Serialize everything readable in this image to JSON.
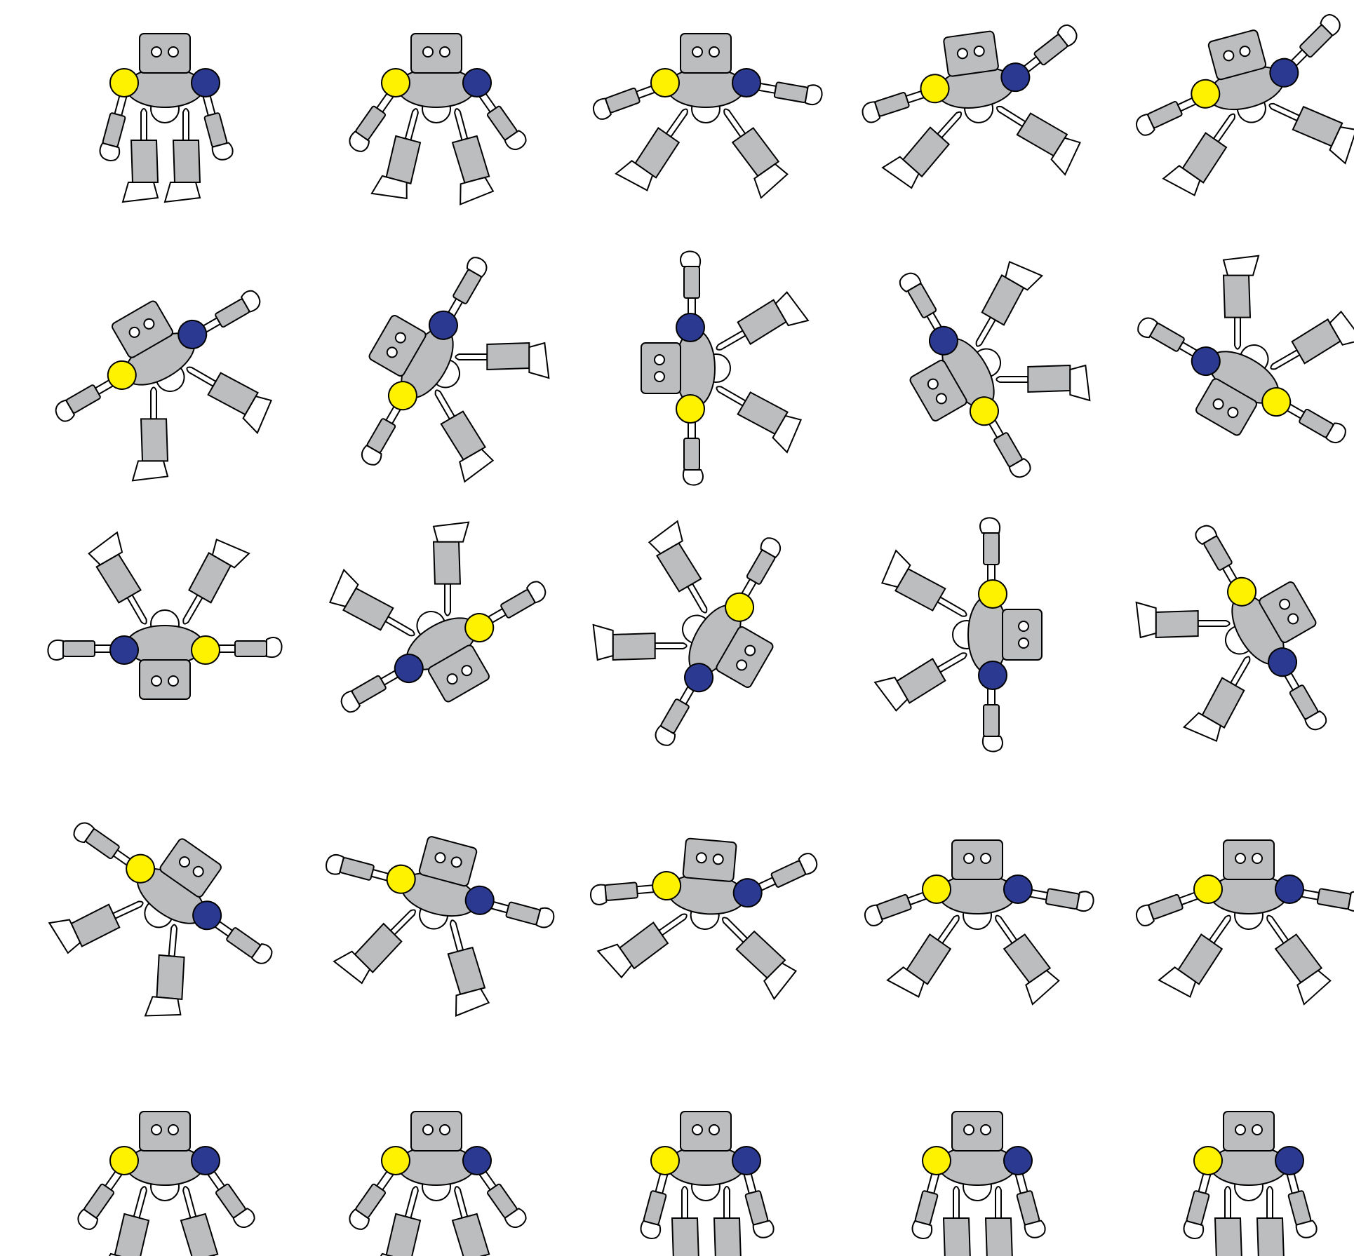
{
  "sprite_sheet": {
    "rows": 5,
    "columns": 5,
    "frame_count": 25,
    "colors": {
      "background": "#ffffff",
      "body": "#bcbdbf",
      "outline": "#000000",
      "hand_foot": "#ffffff",
      "left_shoulder": "#fff200",
      "right_shoulder": "#2b3990"
    },
    "frames": [
      {
        "rotation_deg": 0,
        "pose": "stand"
      },
      {
        "rotation_deg": 0,
        "pose": "arms-out"
      },
      {
        "rotation_deg": 0,
        "pose": "arms-wide"
      },
      {
        "rotation_deg": -8,
        "pose": "arms-up"
      },
      {
        "rotation_deg": -15,
        "pose": "arms-up"
      },
      {
        "rotation_deg": -30,
        "pose": "cartwheel"
      },
      {
        "rotation_deg": -60,
        "pose": "cartwheel"
      },
      {
        "rotation_deg": -90,
        "pose": "cartwheel"
      },
      {
        "rotation_deg": -120,
        "pose": "cartwheel"
      },
      {
        "rotation_deg": -150,
        "pose": "cartwheel"
      },
      {
        "rotation_deg": -180,
        "pose": "cartwheel"
      },
      {
        "rotation_deg": -210,
        "pose": "cartwheel"
      },
      {
        "rotation_deg": -240,
        "pose": "cartwheel"
      },
      {
        "rotation_deg": -270,
        "pose": "cartwheel"
      },
      {
        "rotation_deg": -300,
        "pose": "cartwheel"
      },
      {
        "rotation_deg": -325,
        "pose": "cartwheel"
      },
      {
        "rotation_deg": -345,
        "pose": "cartwheel"
      },
      {
        "rotation_deg": -355,
        "pose": "arms-up"
      },
      {
        "rotation_deg": 0,
        "pose": "arms-wide"
      },
      {
        "rotation_deg": 0,
        "pose": "arms-wide"
      },
      {
        "rotation_deg": 0,
        "pose": "arms-out"
      },
      {
        "rotation_deg": 0,
        "pose": "arms-out"
      },
      {
        "rotation_deg": 0,
        "pose": "stand"
      },
      {
        "rotation_deg": 0,
        "pose": "stand"
      },
      {
        "rotation_deg": 0,
        "pose": "stand"
      }
    ]
  }
}
